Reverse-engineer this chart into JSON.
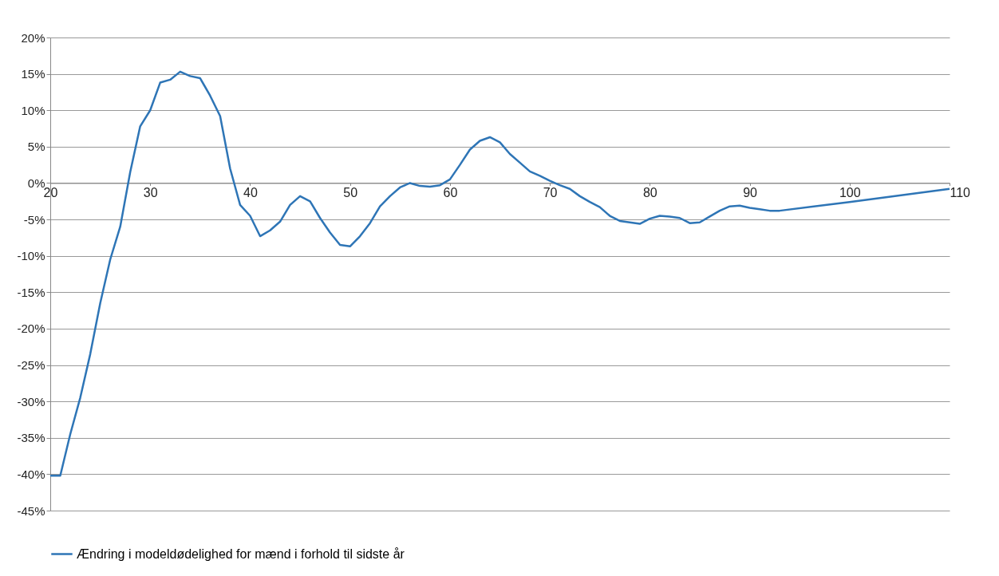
{
  "chart_data": {
    "type": "line",
    "x": [
      20,
      21,
      22,
      23,
      24,
      25,
      26,
      27,
      28,
      29,
      30,
      31,
      32,
      33,
      34,
      35,
      36,
      37,
      38,
      39,
      40,
      41,
      42,
      43,
      44,
      45,
      46,
      47,
      48,
      49,
      50,
      51,
      52,
      53,
      54,
      55,
      56,
      57,
      58,
      59,
      60,
      61,
      62,
      63,
      64,
      65,
      66,
      67,
      68,
      69,
      70,
      71,
      72,
      73,
      74,
      75,
      76,
      77,
      78,
      79,
      80,
      81,
      82,
      83,
      84,
      85,
      86,
      87,
      88,
      89,
      90,
      91,
      92,
      93,
      100,
      110
    ],
    "series": [
      {
        "name": "Ændring i modeldødelighed for mænd i forhold til sidste år",
        "color": "#2e75b6",
        "values": [
          -40.2,
          -40.2,
          -34.5,
          -29.5,
          -23.5,
          -16.5,
          -10.5,
          -6,
          1.5,
          7.8,
          10,
          13.8,
          14.2,
          15.3,
          14.7,
          14.4,
          12,
          9.2,
          2,
          -3,
          -4.5,
          -7.3,
          -6.5,
          -5.3,
          -3,
          -1.8,
          -2.5,
          -4.8,
          -6.8,
          -8.5,
          -8.7,
          -7.3,
          -5.5,
          -3.2,
          -1.8,
          -0.6,
          0,
          -0.4,
          -0.5,
          -0.3,
          0.5,
          2.5,
          4.6,
          5.8,
          6.3,
          5.6,
          4,
          2.8,
          1.6,
          1,
          0.3,
          -0.3,
          -0.8,
          -1.8,
          -2.6,
          -3.3,
          -4.5,
          -5.2,
          -5.4,
          -5.6,
          -4.9,
          -4.5,
          -4.6,
          -4.8,
          -5.5,
          -5.4,
          -4.6,
          -3.8,
          -3.2,
          -3.1,
          -3.4,
          -3.6,
          -3.8,
          -3.8,
          -2.6,
          -0.8
        ]
      }
    ],
    "xlim": [
      20,
      110
    ],
    "xticks": [
      20,
      30,
      40,
      50,
      60,
      70,
      80,
      90,
      100,
      110
    ],
    "ylim": [
      -45,
      20
    ],
    "yticks": [
      {
        "value": -45,
        "label": "-45%"
      },
      {
        "value": -40,
        "label": "-40%"
      },
      {
        "value": -35,
        "label": "-35%"
      },
      {
        "value": -30,
        "label": "-30%"
      },
      {
        "value": -25,
        "label": "-25%"
      },
      {
        "value": -20,
        "label": "-20%"
      },
      {
        "value": -15,
        "label": "-15%"
      },
      {
        "value": -10,
        "label": "-10%"
      },
      {
        "value": -5,
        "label": "-5%"
      },
      {
        "value": 0,
        "label": "0%"
      },
      {
        "value": 5,
        "label": "5%"
      },
      {
        "value": 10,
        "label": "10%"
      },
      {
        "value": 15,
        "label": "15%"
      },
      {
        "value": 20,
        "label": "20%"
      }
    ],
    "grid": "y",
    "legend": "bottom",
    "line_style": "solid"
  }
}
